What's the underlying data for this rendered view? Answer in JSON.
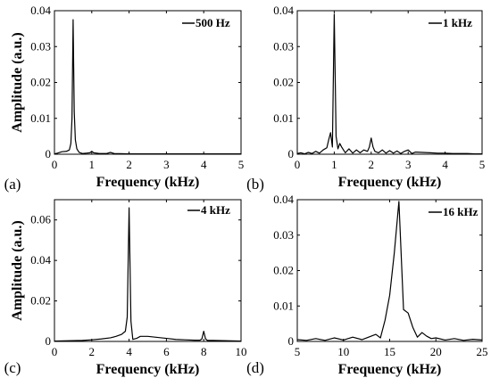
{
  "chart_data": [
    {
      "type": "line",
      "panel_label": "(a)",
      "xlabel": "Frequency (kHz)",
      "ylabel": "Amplitude (a.u.)",
      "xlim": [
        0,
        5
      ],
      "ylim": [
        0,
        0.04
      ],
      "xticks": [
        0,
        1,
        2,
        3,
        4,
        5
      ],
      "xtick_labels": [
        "0",
        "1",
        "2",
        "3",
        "4",
        "5"
      ],
      "yticks": [
        0,
        0.01,
        0.02,
        0.03,
        0.04
      ],
      "ytick_labels": [
        "0",
        "0.01",
        "0.02",
        "0.03",
        "0.04"
      ],
      "legend_position": "top-right",
      "series": [
        {
          "name": "500 Hz",
          "x": [
            0,
            0.08,
            0.2,
            0.32,
            0.4,
            0.44,
            0.47,
            0.5,
            0.53,
            0.56,
            0.6,
            0.66,
            0.75,
            0.85,
            0.95,
            1.0,
            1.05,
            1.2,
            1.4,
            1.5,
            1.6,
            2.0,
            2.5,
            3.0,
            3.5,
            4.0,
            4.5,
            5.0
          ],
          "y": [
            0.0001,
            0.0003,
            0.0007,
            0.0008,
            0.0012,
            0.003,
            0.01,
            0.0375,
            0.012,
            0.004,
            0.0015,
            0.0005,
            0.0002,
            0.0003,
            0.0004,
            0.0008,
            0.0004,
            0.0002,
            0.0002,
            0.0005,
            0.0002,
            0.0001,
            0.0001,
            0.0001,
            0.0001,
            0.0001,
            0.0001,
            0.0001
          ]
        }
      ]
    },
    {
      "type": "line",
      "panel_label": "(b)",
      "xlabel": "Frequency (kHz)",
      "ylabel": "",
      "xlim": [
        0,
        5
      ],
      "ylim": [
        0,
        0.04
      ],
      "xticks": [
        0,
        1,
        2,
        3,
        4,
        5
      ],
      "xtick_labels": [
        "0",
        "1",
        "2",
        "3",
        "4",
        "5"
      ],
      "yticks": [
        0,
        0.01,
        0.02,
        0.03,
        0.04
      ],
      "ytick_labels": [
        "0",
        "0.01",
        "0.02",
        "0.03",
        "0.04"
      ],
      "legend_position": "top-right",
      "series": [
        {
          "name": "1 kHz",
          "x": [
            0,
            0.1,
            0.2,
            0.3,
            0.4,
            0.5,
            0.6,
            0.7,
            0.8,
            0.85,
            0.9,
            0.95,
            1.0,
            1.05,
            1.1,
            1.15,
            1.2,
            1.3,
            1.4,
            1.5,
            1.6,
            1.7,
            1.8,
            1.9,
            1.95,
            2.0,
            2.05,
            2.1,
            2.2,
            2.3,
            2.4,
            2.5,
            2.6,
            2.7,
            2.8,
            2.9,
            3.0,
            3.1,
            3.2,
            3.4,
            3.6,
            3.8,
            4.0,
            4.2,
            4.4,
            4.6,
            4.8,
            5.0
          ],
          "y": [
            0.0002,
            0.0004,
            0.0001,
            0.0005,
            0.0002,
            0.0008,
            0.0003,
            0.0012,
            0.0018,
            0.004,
            0.006,
            0.002,
            0.039,
            0.005,
            0.0015,
            0.003,
            0.002,
            0.0004,
            0.0015,
            0.0003,
            0.0012,
            0.0004,
            0.0012,
            0.0008,
            0.002,
            0.0045,
            0.002,
            0.0008,
            0.0004,
            0.0012,
            0.0003,
            0.001,
            0.0003,
            0.0009,
            0.0002,
            0.0008,
            0.0012,
            0.0002,
            0.0006,
            0.0005,
            0.0004,
            0.0003,
            0.0003,
            0.0002,
            0.0002,
            0.0002,
            0.0001,
            0.0001
          ]
        }
      ]
    },
    {
      "type": "line",
      "panel_label": "(c)",
      "xlabel": "Frequency (kHz)",
      "ylabel": "Amplitude (a.u.)",
      "xlim": [
        0,
        10
      ],
      "ylim": [
        0,
        0.07
      ],
      "xticks": [
        0,
        2,
        4,
        6,
        8,
        10
      ],
      "xtick_labels": [
        "0",
        "2",
        "4",
        "6",
        "8",
        "10"
      ],
      "yticks": [
        0,
        0.02,
        0.04,
        0.06
      ],
      "ytick_labels": [
        "0",
        "0.02",
        "0.04",
        "0.06"
      ],
      "legend_position": "top-right",
      "series": [
        {
          "name": "4 kHz",
          "x": [
            0,
            0.5,
            1.0,
            1.5,
            2.0,
            2.5,
            3.0,
            3.3,
            3.6,
            3.8,
            3.9,
            4.0,
            4.1,
            4.2,
            4.4,
            4.6,
            5.0,
            5.5,
            6.0,
            6.5,
            7.0,
            7.5,
            7.8,
            7.9,
            8.0,
            8.1,
            8.2,
            8.5,
            9.0,
            9.5,
            10.0
          ],
          "y": [
            0.0002,
            0.0003,
            0.0004,
            0.0005,
            0.0008,
            0.0012,
            0.0018,
            0.0025,
            0.0035,
            0.005,
            0.012,
            0.066,
            0.01,
            0.001,
            0.0015,
            0.0025,
            0.0025,
            0.002,
            0.0015,
            0.001,
            0.0008,
            0.0006,
            0.0006,
            0.0012,
            0.005,
            0.0012,
            0.0005,
            0.0005,
            0.0004,
            0.0003,
            0.0002
          ]
        }
      ]
    },
    {
      "type": "line",
      "panel_label": "(d)",
      "xlabel": "Frequency (kHz)",
      "ylabel": "",
      "xlim": [
        5,
        25
      ],
      "ylim": [
        0,
        0.04
      ],
      "xticks": [
        5,
        10,
        15,
        20,
        25
      ],
      "xtick_labels": [
        "5",
        "10",
        "15",
        "20",
        "25"
      ],
      "yticks": [
        0,
        0.01,
        0.02,
        0.03,
        0.04
      ],
      "ytick_labels": [
        "0",
        "0.01",
        "0.02",
        "0.03",
        "0.04"
      ],
      "legend_position": "top-right",
      "series": [
        {
          "name": "16 kHz",
          "x": [
            5,
            6,
            7,
            8,
            9,
            10,
            11,
            12,
            13,
            13.5,
            14,
            14.5,
            15,
            15.5,
            16,
            16.5,
            17,
            17.5,
            18,
            18.5,
            19,
            19.5,
            20,
            21,
            22,
            23,
            24,
            25
          ],
          "y": [
            0.0005,
            0.0003,
            0.0008,
            0.0003,
            0.001,
            0.0004,
            0.0012,
            0.0005,
            0.0015,
            0.002,
            0.001,
            0.006,
            0.013,
            0.025,
            0.0395,
            0.009,
            0.008,
            0.004,
            0.0012,
            0.0025,
            0.0015,
            0.0008,
            0.001,
            0.0004,
            0.0008,
            0.0003,
            0.0006,
            0.0004
          ]
        }
      ]
    }
  ]
}
